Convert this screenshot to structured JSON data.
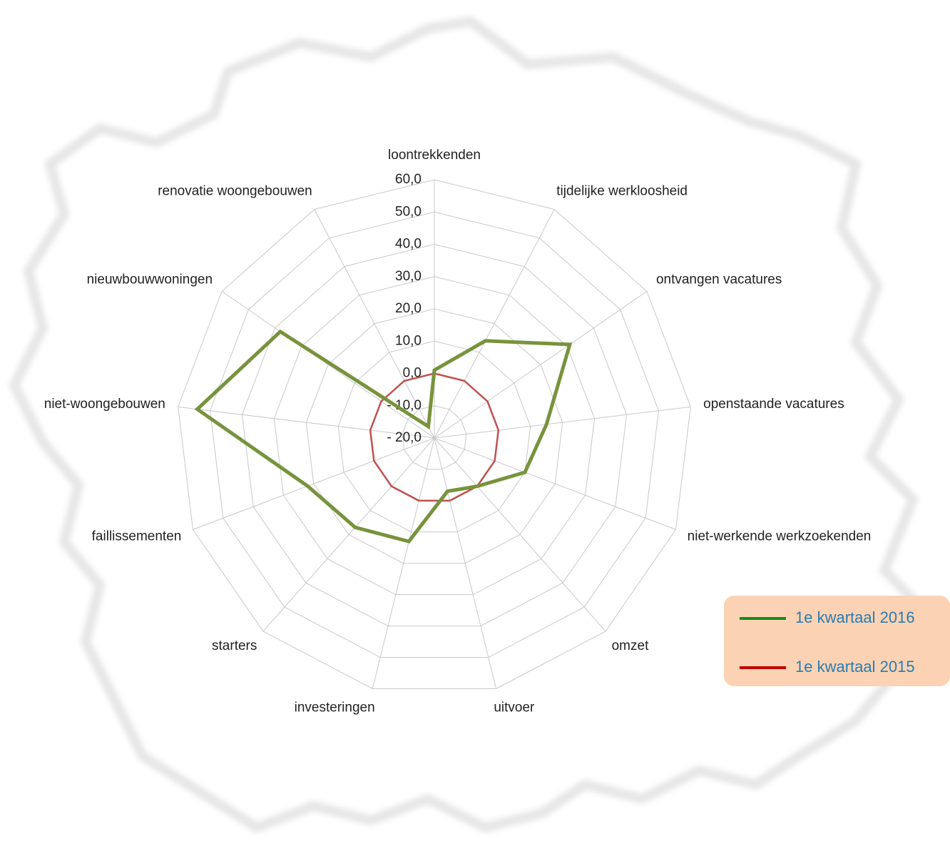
{
  "chart_data": {
    "type": "radar",
    "categories": [
      "loontrekkenden",
      "tijdelijke werkloosheid",
      "ontvangen vacatures",
      "openstaande vacatures",
      "niet-werkende werkzoekenden",
      "omzet",
      "uitvoer",
      "investeringen",
      "starters",
      "faillissementen",
      "niet-woongebouwen",
      "nieuwbouwwoningen",
      "renovatie woongebouwen"
    ],
    "series": [
      {
        "name": "1e kwartaal 2016",
        "color": "#77933c",
        "legend_color": "#1a8a1a",
        "values": [
          1,
          14,
          31,
          15,
          10,
          0,
          -3,
          13,
          17,
          22,
          54,
          38,
          -16
        ]
      },
      {
        "name": "1e kwartaal 2015",
        "color": "#c0504d",
        "legend_color": "#c00000",
        "values": [
          0,
          0,
          0,
          0,
          0,
          0,
          0,
          0,
          0,
          0,
          0,
          0,
          0
        ]
      }
    ],
    "ylim": [
      -20,
      60
    ],
    "yticks": [
      {
        "value": -20,
        "label": "- 20,0"
      },
      {
        "value": -10,
        "label": "- 10,0"
      },
      {
        "value": 0,
        "label": "0,0"
      },
      {
        "value": 10,
        "label": "10,0"
      },
      {
        "value": 20,
        "label": "20,0"
      },
      {
        "value": 30,
        "label": "30,0"
      },
      {
        "value": 40,
        "label": "40,0"
      },
      {
        "value": 50,
        "label": "50,0"
      },
      {
        "value": 60,
        "label": "60,0"
      }
    ],
    "grid": true
  }
}
